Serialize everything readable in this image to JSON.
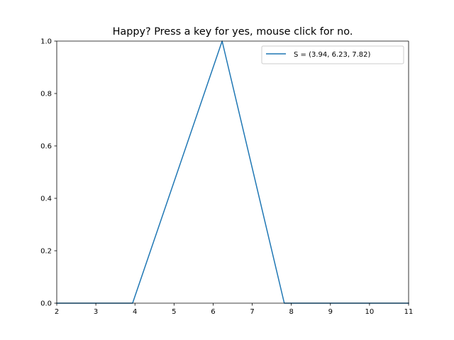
{
  "chart_data": {
    "type": "line",
    "title": "Happy? Press a key for yes, mouse click for no.",
    "xlabel": "",
    "ylabel": "",
    "xlim": [
      2,
      11
    ],
    "ylim": [
      0,
      1
    ],
    "xticks": [
      "2",
      "3",
      "4",
      "5",
      "6",
      "7",
      "8",
      "9",
      "10",
      "11"
    ],
    "yticks": [
      "0.0",
      "0.2",
      "0.4",
      "0.6",
      "0.8",
      "1.0"
    ],
    "grid": false,
    "legend_position": "top-right",
    "series": [
      {
        "name": "S = (3.94, 6.23, 7.82)",
        "color": "#1f77b4",
        "x": [
          2,
          3.94,
          6.23,
          7.82,
          11
        ],
        "y": [
          0,
          0,
          1,
          0,
          0
        ]
      }
    ]
  }
}
